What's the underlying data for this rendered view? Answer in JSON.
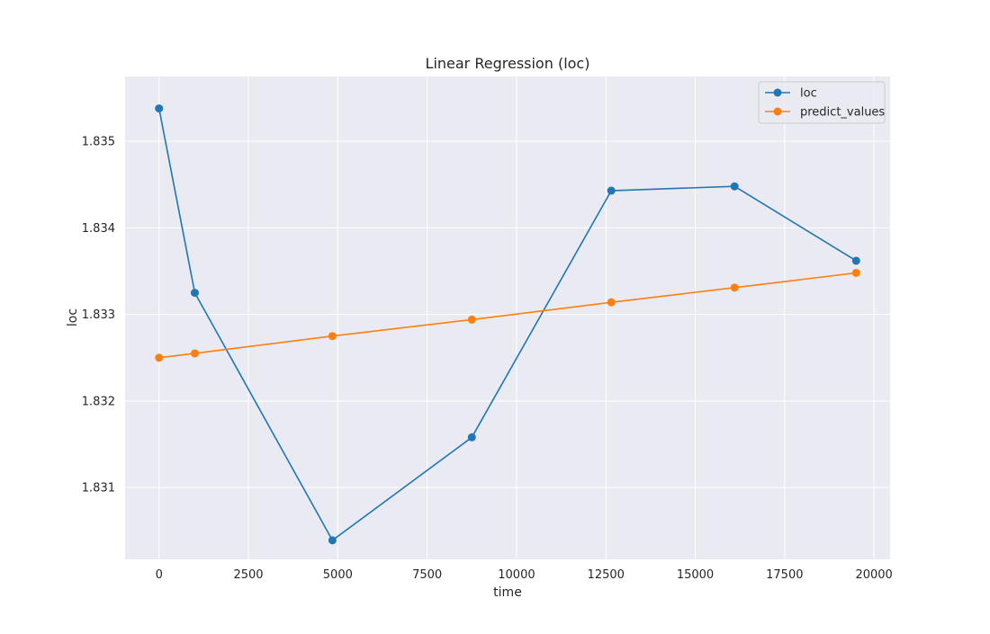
{
  "chart_data": {
    "type": "line",
    "title": "Linear Regression (loc)",
    "xlabel": "time",
    "ylabel": "loc",
    "xlim": [
      -950,
      20450
    ],
    "ylim": [
      1.83017,
      1.83575
    ],
    "xticks": [
      0,
      2500,
      5000,
      7500,
      10000,
      12500,
      15000,
      17500,
      20000
    ],
    "yticks": [
      1.831,
      1.832,
      1.833,
      1.834,
      1.835
    ],
    "grid": true,
    "legend_position": "top-right",
    "x": [
      0,
      1000,
      4850,
      8750,
      12650,
      16100,
      19500
    ],
    "series": [
      {
        "name": "loc",
        "color": "#1f77b4",
        "marker": "circle",
        "values": [
          1.83538,
          1.83325,
          1.83039,
          1.83158,
          1.83443,
          1.83448,
          1.83362
        ]
      },
      {
        "name": "predict_values",
        "color": "#ff7f0e",
        "marker": "circle",
        "values": [
          1.8325,
          1.83255,
          1.83275,
          1.83294,
          1.83314,
          1.83331,
          1.83348
        ]
      }
    ]
  }
}
